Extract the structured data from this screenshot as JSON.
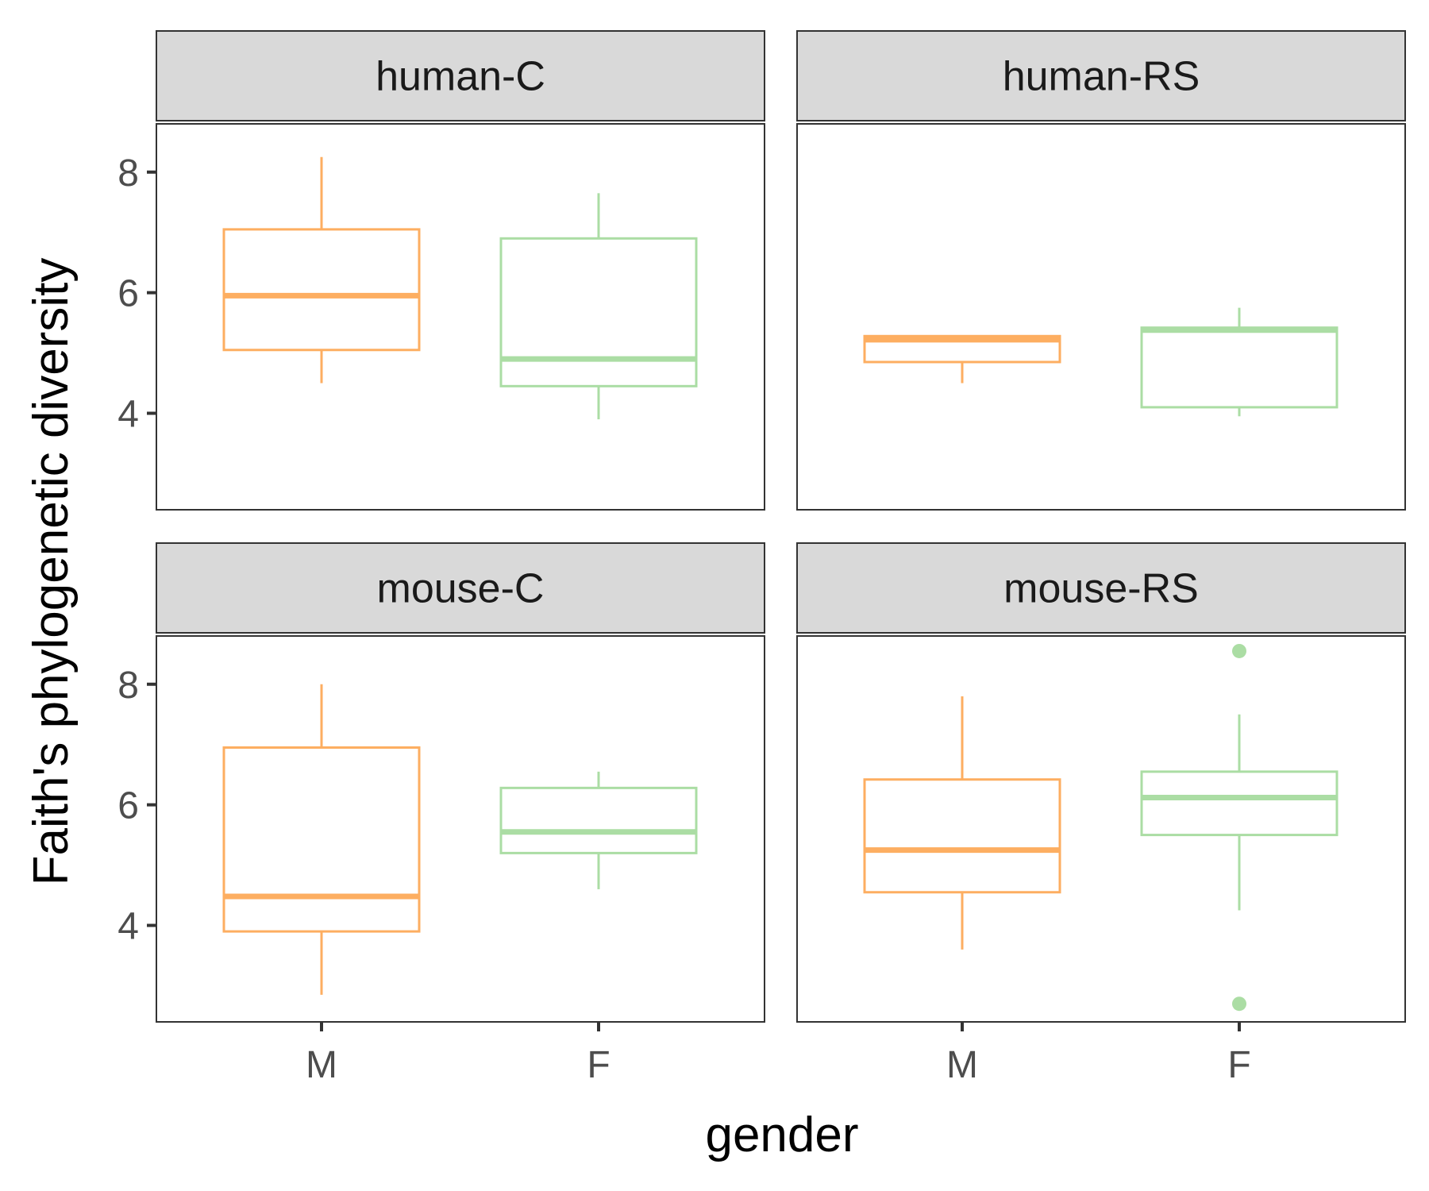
{
  "chart_data": {
    "type": "boxplot",
    "xlabel": "gender",
    "ylabel": "Faith's phylogenetic diversity",
    "categories": [
      "M",
      "F"
    ],
    "ylim": [
      2.4,
      8.8
    ],
    "yticks": [
      4,
      6,
      8
    ],
    "grid": false,
    "legend": "none",
    "colors": {
      "M": "#FDAE61",
      "F": "#ABDDA4"
    },
    "facets": [
      {
        "label": "human-C",
        "boxes": [
          {
            "category": "M",
            "whisker_low": 4.5,
            "q1": 5.05,
            "median": 5.95,
            "q3": 7.05,
            "whisker_high": 8.25,
            "outliers": []
          },
          {
            "category": "F",
            "whisker_low": 3.9,
            "q1": 4.45,
            "median": 4.9,
            "q3": 6.9,
            "whisker_high": 7.65,
            "outliers": []
          }
        ]
      },
      {
        "label": "human-RS",
        "boxes": [
          {
            "category": "M",
            "whisker_low": 4.5,
            "q1": 4.85,
            "median": 5.22,
            "q3": 5.28,
            "whisker_high": 5.28,
            "outliers": []
          },
          {
            "category": "F",
            "whisker_low": 3.95,
            "q1": 4.1,
            "median": 5.38,
            "q3": 5.42,
            "whisker_high": 5.75,
            "outliers": []
          }
        ]
      },
      {
        "label": "mouse-C",
        "boxes": [
          {
            "category": "M",
            "whisker_low": 2.85,
            "q1": 3.9,
            "median": 4.48,
            "q3": 6.95,
            "whisker_high": 8.0,
            "outliers": []
          },
          {
            "category": "F",
            "whisker_low": 4.6,
            "q1": 5.2,
            "median": 5.55,
            "q3": 6.28,
            "whisker_high": 6.55,
            "outliers": []
          }
        ]
      },
      {
        "label": "mouse-RS",
        "boxes": [
          {
            "category": "M",
            "whisker_low": 3.6,
            "q1": 4.55,
            "median": 5.25,
            "q3": 6.42,
            "whisker_high": 7.8,
            "outliers": []
          },
          {
            "category": "F",
            "whisker_low": 4.25,
            "q1": 5.5,
            "median": 6.12,
            "q3": 6.55,
            "whisker_high": 7.5,
            "outliers": [
              8.55,
              2.7
            ]
          }
        ]
      }
    ]
  }
}
